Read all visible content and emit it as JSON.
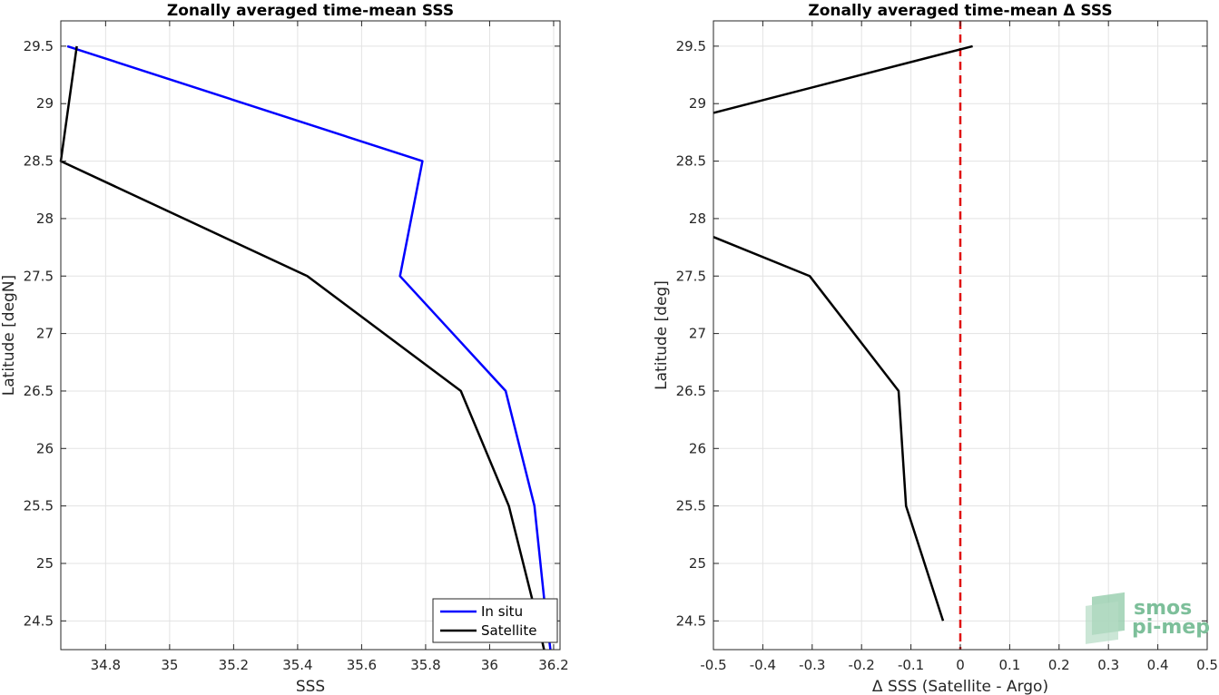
{
  "chart_data": [
    {
      "type": "line",
      "title": "Zonally averaged time-mean SSS",
      "xlabel": "SSS",
      "ylabel": "Latitude [degN]",
      "xlim": [
        34.66,
        36.22
      ],
      "ylim": [
        24.25,
        29.72
      ],
      "xticks": [
        34.8,
        35,
        35.2,
        35.4,
        35.6,
        35.8,
        36,
        36.2
      ],
      "xtick_labels": [
        "34.8",
        "35",
        "35.2",
        "35.4",
        "35.6",
        "35.8",
        "36",
        "36.2"
      ],
      "yticks": [
        24.5,
        25,
        25.5,
        26,
        26.5,
        27,
        27.5,
        28,
        28.5,
        29,
        29.5
      ],
      "ytick_labels": [
        "24.5",
        "25",
        "25.5",
        "26",
        "26.5",
        "27",
        "27.5",
        "28",
        "28.5",
        "29",
        "29.5"
      ],
      "grid": true,
      "legend": "bottom-right",
      "series": [
        {
          "name": "In situ",
          "color": "#0000ff",
          "x": [
            34.68,
            35.79,
            35.72,
            36.05,
            36.14,
            36.17,
            36.19
          ],
          "y": [
            29.5,
            28.5,
            27.5,
            26.5,
            25.5,
            24.7,
            24.25
          ]
        },
        {
          "name": "Satellite",
          "color": "#000000",
          "x": [
            34.71,
            34.66,
            35.43,
            35.91,
            36.06,
            36.15,
            36.17
          ],
          "y": [
            29.5,
            28.5,
            27.5,
            26.5,
            25.5,
            24.5,
            24.25
          ]
        }
      ]
    },
    {
      "type": "line",
      "title": "Zonally averaged time-mean Δ SSS",
      "xlabel": "Δ SSS (Satellite - Argo)",
      "ylabel": "Latitude [deg]",
      "xlim": [
        -0.5,
        0.5
      ],
      "ylim": [
        24.25,
        29.72
      ],
      "xticks": [
        -0.5,
        -0.4,
        -0.3,
        -0.2,
        -0.1,
        0,
        0.1,
        0.2,
        0.3,
        0.4,
        0.5
      ],
      "xtick_labels": [
        "-0.5",
        "-0.4",
        "-0.3",
        "-0.2",
        "-0.1",
        "0",
        "0.1",
        "0.2",
        "0.3",
        "0.4",
        "0.5"
      ],
      "yticks": [
        24.5,
        25,
        25.5,
        26,
        26.5,
        27,
        27.5,
        28,
        28.5,
        29,
        29.5
      ],
      "ytick_labels": [
        "24.5",
        "25",
        "25.5",
        "26",
        "26.5",
        "27",
        "27.5",
        "28",
        "28.5",
        "29",
        "29.5"
      ],
      "grid": true,
      "reference_line": {
        "x": 0,
        "color": "#e01010",
        "style": "dashed"
      },
      "series": [
        {
          "color": "#000000",
          "segments": [
            {
              "x": [
                0.025,
                -0.5
              ],
              "y": [
                29.5,
                28.92
              ]
            },
            {
              "x": [
                -0.5,
                -0.305,
                -0.125,
                -0.11,
                -0.035
              ],
              "y": [
                27.84,
                27.5,
                26.5,
                25.5,
                24.5
              ]
            }
          ]
        }
      ]
    }
  ],
  "logo": {
    "line1": "smos",
    "line2": "pi-mep"
  }
}
